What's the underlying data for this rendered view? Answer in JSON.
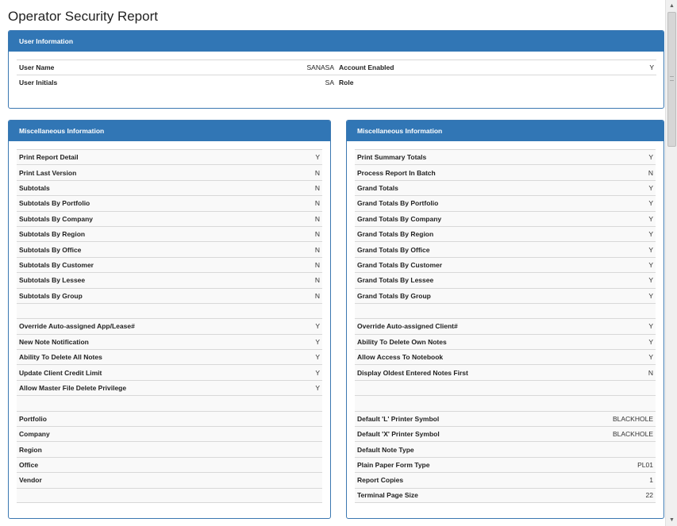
{
  "page": {
    "title": "Operator Security Report"
  },
  "user_info": {
    "header": "User Information",
    "rows": [
      {
        "left_label": "User Name",
        "left_value": "SANASA",
        "right_label": "Account Enabled",
        "right_value": "Y"
      },
      {
        "left_label": "User Initials",
        "left_value": "SA",
        "right_label": "Role",
        "right_value": ""
      }
    ]
  },
  "misc_left": {
    "header": "Miscellaneous Information",
    "rows": [
      {
        "label": "Print Report Detail",
        "value": "Y"
      },
      {
        "label": "Print Last Version",
        "value": "N"
      },
      {
        "label": "Subtotals",
        "value": "N"
      },
      {
        "label": "Subtotals By Portfolio",
        "value": "N"
      },
      {
        "label": "Subtotals By Company",
        "value": "N"
      },
      {
        "label": "Subtotals By Region",
        "value": "N"
      },
      {
        "label": "Subtotals By Office",
        "value": "N"
      },
      {
        "label": "Subtotals By Customer",
        "value": "N"
      },
      {
        "label": "Subtotals By Lessee",
        "value": "N"
      },
      {
        "label": "Subtotals By Group",
        "value": "N"
      },
      {
        "label": "",
        "value": ""
      },
      {
        "label": "Override Auto-assigned App/Lease#",
        "value": "Y"
      },
      {
        "label": "New Note Notification",
        "value": "Y"
      },
      {
        "label": "Ability To Delete All Notes",
        "value": "Y"
      },
      {
        "label": "Update Client Credit Limit",
        "value": "Y"
      },
      {
        "label": "Allow Master File Delete Privilege",
        "value": "Y"
      },
      {
        "label": "",
        "value": ""
      },
      {
        "label": "Portfolio",
        "value": ""
      },
      {
        "label": "Company",
        "value": ""
      },
      {
        "label": "Region",
        "value": ""
      },
      {
        "label": "Office",
        "value": ""
      },
      {
        "label": "Vendor",
        "value": ""
      },
      {
        "label": "",
        "value": ""
      }
    ]
  },
  "misc_right": {
    "header": "Miscellaneous Information",
    "rows": [
      {
        "label": "Print Summary Totals",
        "value": "Y"
      },
      {
        "label": "Process Report In Batch",
        "value": "N"
      },
      {
        "label": "Grand Totals",
        "value": "Y"
      },
      {
        "label": "Grand Totals By Portfolio",
        "value": "Y"
      },
      {
        "label": "Grand Totals By Company",
        "value": "Y"
      },
      {
        "label": "Grand Totals By Region",
        "value": "Y"
      },
      {
        "label": "Grand Totals By Office",
        "value": "Y"
      },
      {
        "label": "Grand Totals By Customer",
        "value": "Y"
      },
      {
        "label": "Grand Totals By Lessee",
        "value": "Y"
      },
      {
        "label": "Grand Totals By Group",
        "value": "Y"
      },
      {
        "label": "",
        "value": ""
      },
      {
        "label": "Override Auto-assigned Client#",
        "value": "Y"
      },
      {
        "label": "Ability To Delete Own Notes",
        "value": "Y"
      },
      {
        "label": "Allow Access To Notebook",
        "value": "Y"
      },
      {
        "label": "Display Oldest Entered Notes First",
        "value": "N"
      },
      {
        "label": "",
        "value": ""
      },
      {
        "label": "",
        "value": ""
      },
      {
        "label": "Default 'L' Printer Symbol",
        "value": "BLACKHOLE"
      },
      {
        "label": "Default 'X' Printer Symbol",
        "value": "BLACKHOLE"
      },
      {
        "label": "Default Note Type",
        "value": ""
      },
      {
        "label": "Plain Paper Form Type",
        "value": "PL01"
      },
      {
        "label": "Report Copies",
        "value": "1"
      },
      {
        "label": "Terminal Page Size",
        "value": "22"
      }
    ]
  },
  "scrollbar": {
    "up_icon": "▲",
    "down_icon": "▼"
  }
}
